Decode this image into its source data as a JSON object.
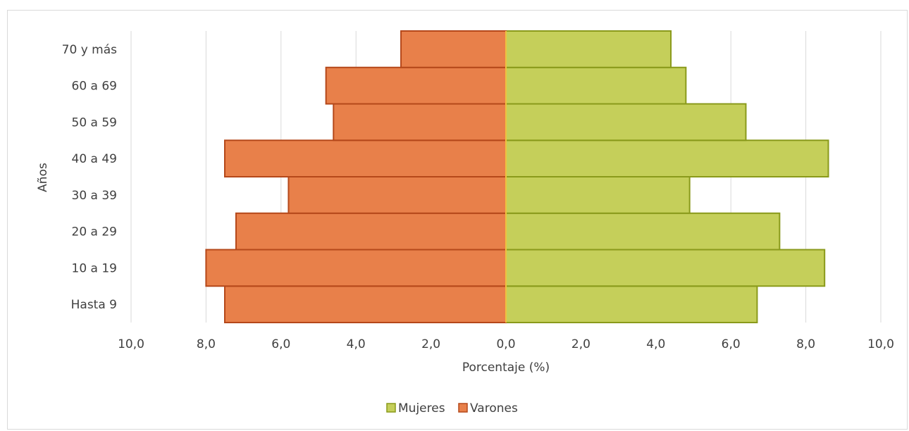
{
  "chart_data": {
    "type": "bar",
    "orientation": "horizontal",
    "layout": "population-pyramid",
    "categories": [
      "Hasta 9",
      "10 a 19",
      "20 a 29",
      "30 a 39",
      "40 a 49",
      "50 a 59",
      "60 a 69",
      "70 y más"
    ],
    "series": [
      {
        "name": "Mujeres",
        "side": "right",
        "color": "#c5cf5a",
        "stroke": "#8a9a1b",
        "values": [
          6.7,
          8.5,
          7.3,
          4.9,
          8.6,
          6.4,
          4.8,
          4.4
        ]
      },
      {
        "name": "Varones",
        "side": "left",
        "color": "#e8804a",
        "stroke": "#b5481a",
        "values": [
          7.5,
          8.0,
          7.2,
          5.8,
          7.5,
          4.6,
          4.8,
          2.8
        ]
      }
    ],
    "x_ticks": [
      "10,0",
      "8,0",
      "6,0",
      "4,0",
      "2,0",
      "0,0",
      "2,0",
      "4,0",
      "6,0",
      "8,0",
      "10,0"
    ],
    "xlim": [
      -10,
      10
    ],
    "xlabel": "Porcentaje (%)",
    "ylabel": "Años",
    "grid": true,
    "legend_position": "bottom",
    "center_line_color": "#f0c040"
  }
}
